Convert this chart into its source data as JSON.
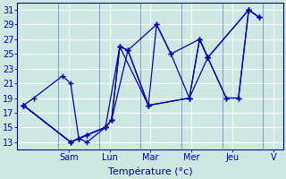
{
  "xlabel": "Température (°c)",
  "background_color": "#cce8e0",
  "grid_color": "#ffffff",
  "line_color": "#0000bb",
  "xlim": [
    0,
    13
  ],
  "ylim": [
    12,
    32
  ],
  "yticks": [
    13,
    15,
    17,
    19,
    21,
    23,
    25,
    27,
    29,
    31
  ],
  "day_ticks_x": [
    2.5,
    4.5,
    6.5,
    8.5,
    10.5,
    12.5
  ],
  "day_labels": [
    "Sam",
    "Lun",
    "Mar",
    "Mer",
    "Jeu",
    "V"
  ],
  "forecasts": [
    {
      "x": [
        0.3,
        0.8,
        2.2,
        2.6,
        3.0,
        3.4,
        4.3,
        4.6,
        5.0,
        5.4,
        6.4,
        6.8,
        7.5,
        8.4,
        8.9,
        9.3,
        10.2,
        10.8,
        11.3,
        11.8
      ],
      "y": [
        18,
        19,
        22,
        21,
        13.5,
        13,
        15,
        16,
        26,
        25.5,
        18,
        29,
        25,
        19,
        27,
        24.5,
        19,
        19,
        31,
        30
      ]
    },
    {
      "x": [
        0.3,
        2.6,
        3.0,
        3.4,
        4.3,
        4.6,
        5.0,
        5.4,
        6.8,
        7.5,
        8.9,
        9.3,
        10.2,
        10.8,
        11.3,
        11.8
      ],
      "y": [
        18,
        13,
        13.5,
        14,
        15,
        16,
        26,
        25.5,
        29,
        25,
        27,
        24.5,
        19,
        19,
        31,
        30
      ]
    },
    {
      "x": [
        0.3,
        2.6,
        3.4,
        4.3,
        4.6,
        5.4,
        6.4,
        8.4,
        8.9,
        9.3,
        11.3,
        11.8
      ],
      "y": [
        18,
        13,
        14,
        15,
        16,
        25.5,
        18,
        19,
        27,
        24.5,
        31,
        30
      ]
    },
    {
      "x": [
        0.3,
        2.6,
        4.3,
        5.0,
        6.4,
        8.4,
        9.3,
        11.3
      ],
      "y": [
        18,
        13,
        15,
        26,
        18,
        19,
        24.5,
        31
      ]
    }
  ]
}
